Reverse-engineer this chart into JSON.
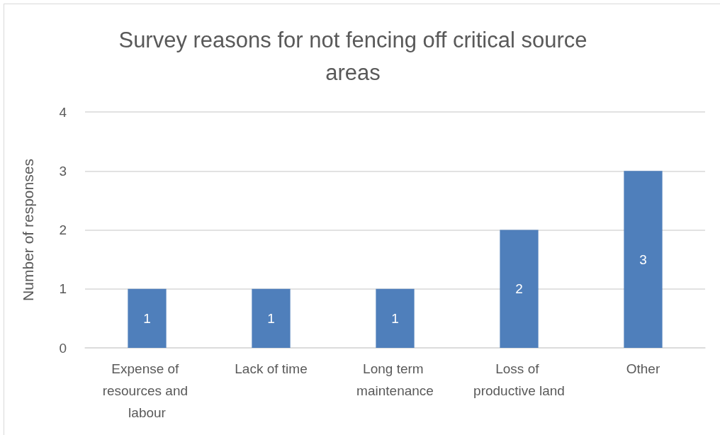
{
  "chart_data": {
    "type": "bar",
    "title": "Survey reasons for not fencing off critical source areas",
    "ylabel": "Number of responses",
    "categories": [
      "Expense of resources and labour",
      "Lack of time",
      "Long term maintenance",
      "Loss of productive land",
      "Other"
    ],
    "values": [
      1,
      1,
      1,
      2,
      3
    ],
    "color": "#4f7fbb",
    "ylim": [
      0,
      4
    ],
    "yticks": [
      0,
      1,
      2,
      3,
      4
    ],
    "grid": "y",
    "data_labels": true
  }
}
